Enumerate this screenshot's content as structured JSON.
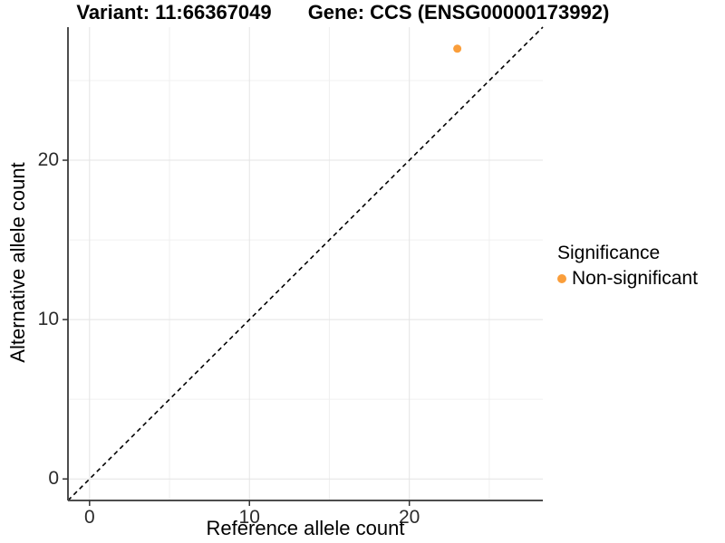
{
  "chart_data": {
    "type": "scatter",
    "title_left": "Variant: 11:66367049",
    "title_right": "Gene: CCS (ENSG00000173992)",
    "xlabel": "Reference allele count",
    "ylabel": "Alternative allele count",
    "xlim": [
      -1.35,
      28.35
    ],
    "ylim": [
      -1.35,
      28.35
    ],
    "x_ticks": [
      0,
      10,
      20
    ],
    "y_ticks": [
      0,
      10,
      20
    ],
    "x_minor_ticks": [
      5,
      15,
      25
    ],
    "y_minor_ticks": [
      5,
      15,
      25
    ],
    "grid": "major+minor",
    "reference_line": {
      "type": "identity",
      "slope": 1,
      "intercept": 0,
      "style": "dashed",
      "color": "#000000"
    },
    "series": [
      {
        "name": "Non-significant",
        "color": "#FA9E3B",
        "points": [
          {
            "x": 23,
            "y": 27
          }
        ]
      }
    ],
    "legend": {
      "title": "Significance",
      "position": "right",
      "entries": [
        {
          "label": "Non-significant",
          "color": "#FA9E3B"
        }
      ]
    },
    "colors": {
      "axis_line": "#4D4D4D",
      "tick_mark": "#333333",
      "grid_major": "#E4E4E4",
      "grid_minor": "#F0F0F0",
      "background": "#FFFFFF"
    }
  }
}
